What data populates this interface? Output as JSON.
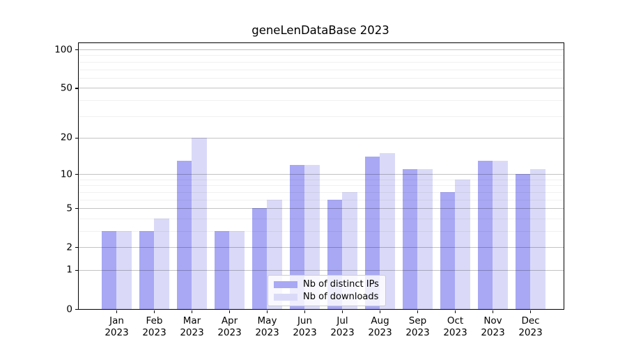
{
  "title": "geneLenDataBase 2023",
  "chart_data": {
    "type": "bar",
    "title": "geneLenDataBase 2023",
    "categories": [
      "Jan 2023",
      "Feb 2023",
      "Mar 2023",
      "Apr 2023",
      "May 2023",
      "Jun 2023",
      "Jul 2023",
      "Aug 2023",
      "Sep 2023",
      "Oct 2023",
      "Nov 2023",
      "Dec 2023"
    ],
    "series": [
      {
        "name": "Nb of distinct IPs",
        "color": "#a8a8f5",
        "base_color": "#6666ee",
        "alpha": 0.57,
        "values": [
          3,
          3,
          13,
          3,
          5,
          12,
          6,
          14,
          11,
          7,
          13,
          10
        ]
      },
      {
        "name": "Nb of downloads",
        "color": "#dadaf8",
        "base_color": "#6666ee",
        "alpha": 0.24,
        "values": [
          3,
          4,
          20,
          3,
          6,
          12,
          7,
          15,
          11,
          9,
          13,
          11
        ]
      }
    ],
    "xlabel": "",
    "ylabel": "",
    "yscale": "log1p",
    "ylim": [
      0,
      112
    ],
    "y_ticks": [
      100,
      50,
      20,
      10,
      5,
      2,
      1,
      0
    ],
    "y_minor_ticks": [
      3,
      4,
      6,
      7,
      8,
      9,
      30,
      40,
      60,
      70,
      80,
      90
    ],
    "grid": true,
    "legend_position": "lower center",
    "colors": {
      "major_grid": "#c3c3c3",
      "minor_grid": "#ededed",
      "spine": "#000000",
      "background": "#ffffff"
    }
  }
}
